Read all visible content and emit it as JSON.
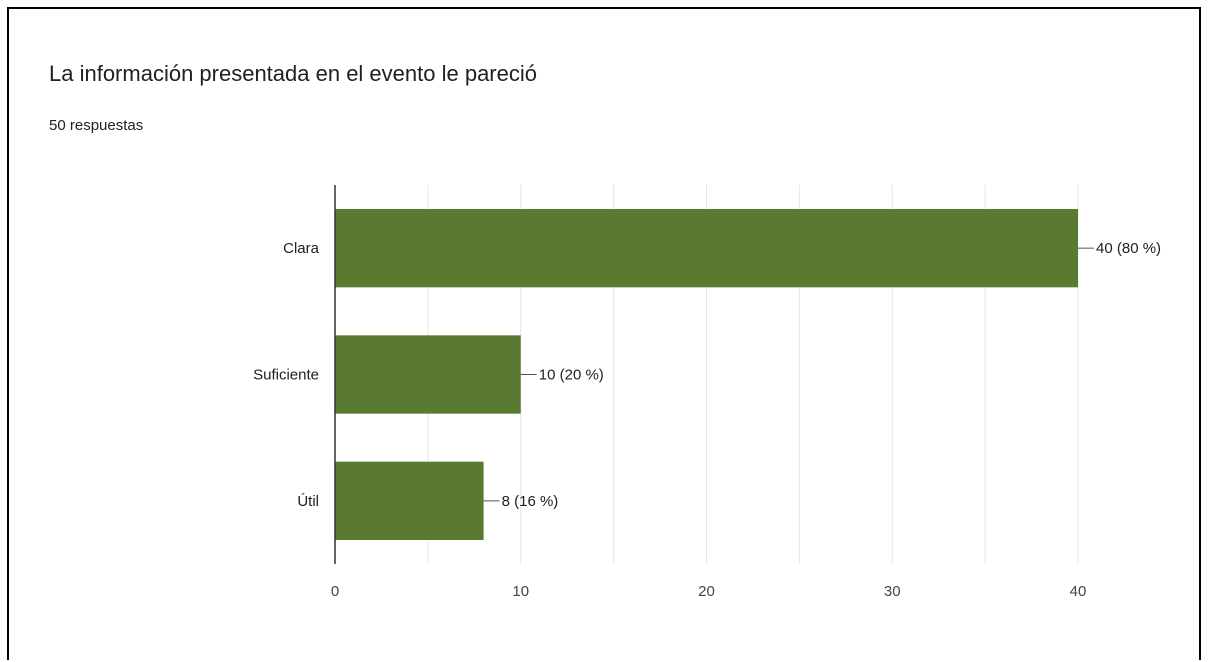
{
  "card": {
    "title": "La información presentada en el evento le pareció",
    "responses": "50 respuestas"
  },
  "colors": {
    "bar": "#5a7a32",
    "grid": "#e6e6e6",
    "axis": "#333333",
    "text": "#202124"
  },
  "chart_data": {
    "type": "bar",
    "orientation": "horizontal",
    "title": "La información presentada en el evento le pareció",
    "subtitle": "50 respuestas",
    "categories": [
      "Clara",
      "Suficiente",
      "Útil"
    ],
    "values": [
      40,
      10,
      8
    ],
    "labels": [
      "40 (80 %)",
      "10 (20 %)",
      "8 (16 %)"
    ],
    "xlim": [
      0,
      40
    ],
    "xticks": [
      0,
      10,
      20,
      30,
      40
    ],
    "grid": true,
    "legend": "none"
  }
}
